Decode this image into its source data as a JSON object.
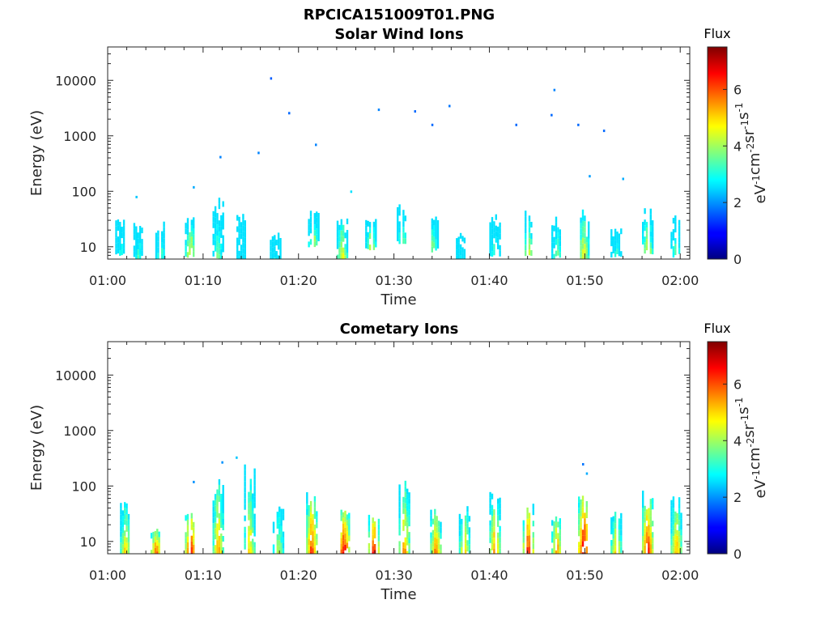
{
  "figure_title": "RPCICA151009T01.PNG",
  "chart_data": [
    {
      "type": "heatmap",
      "title": "Solar Wind Ions",
      "xlabel": "Time",
      "ylabel": "Energy (eV)",
      "x_ticks": [
        "01:00",
        "01:10",
        "01:20",
        "01:30",
        "01:40",
        "01:50",
        "02:00"
      ],
      "x_range_minutes": [
        0,
        61
      ],
      "y_scale": "log",
      "y_ticks": [
        "10",
        "100",
        "1000",
        "10000"
      ],
      "y_range": [
        6,
        40000
      ],
      "colorbar": {
        "title": "Flux",
        "label": "eV-1cm-2sr-1s-1",
        "ticks": [
          "0",
          "2",
          "4",
          "6"
        ],
        "range": [
          0,
          7.5
        ],
        "colormap": "jet"
      },
      "bursts": [
        {
          "t": 1.3,
          "e_lo": 8,
          "e_hi": 35,
          "flux": 3.2
        },
        {
          "t": 3.2,
          "e_lo": 7,
          "e_hi": 30,
          "flux": 3.4
        },
        {
          "t": 5.5,
          "e_lo": 6,
          "e_hi": 30,
          "flux": 3.8
        },
        {
          "t": 8.6,
          "e_lo": 8,
          "e_hi": 40,
          "flux": 4.8
        },
        {
          "t": 11.5,
          "e_lo": 7,
          "e_hi": 80,
          "flux": 3.9
        },
        {
          "t": 14.0,
          "e_lo": 6,
          "e_hi": 40,
          "flux": 3.0
        },
        {
          "t": 17.5,
          "e_lo": 6,
          "e_hi": 18,
          "flux": 3.0
        },
        {
          "t": 21.5,
          "e_lo": 12,
          "e_hi": 50,
          "flux": 4.3
        },
        {
          "t": 24.5,
          "e_lo": 7,
          "e_hi": 40,
          "flux": 4.8
        },
        {
          "t": 27.5,
          "e_lo": 10,
          "e_hi": 40,
          "flux": 4.5
        },
        {
          "t": 30.8,
          "e_lo": 14,
          "e_hi": 60,
          "flux": 3.8
        },
        {
          "t": 34.0,
          "e_lo": 10,
          "e_hi": 40,
          "flux": 4.0
        },
        {
          "t": 37.0,
          "e_lo": 6,
          "e_hi": 20,
          "flux": 3.2
        },
        {
          "t": 40.5,
          "e_lo": 8,
          "e_hi": 40,
          "flux": 3.6
        },
        {
          "t": 44.0,
          "e_lo": 8,
          "e_hi": 45,
          "flux": 4.6
        },
        {
          "t": 47.0,
          "e_lo": 7,
          "e_hi": 35,
          "flux": 4.0
        },
        {
          "t": 49.8,
          "e_lo": 6,
          "e_hi": 60,
          "flux": 4.9
        },
        {
          "t": 53.2,
          "e_lo": 8,
          "e_hi": 25,
          "flux": 3.3
        },
        {
          "t": 56.5,
          "e_lo": 9,
          "e_hi": 50,
          "flux": 4.6
        },
        {
          "t": 59.5,
          "e_lo": 8,
          "e_hi": 40,
          "flux": 3.9
        }
      ],
      "points": [
        {
          "t": 3.0,
          "e": 80,
          "flux": 2.4
        },
        {
          "t": 9.0,
          "e": 120,
          "flux": 2.2
        },
        {
          "t": 11.8,
          "e": 420,
          "flux": 1.9
        },
        {
          "t": 15.8,
          "e": 500,
          "flux": 1.9
        },
        {
          "t": 17.1,
          "e": 11000,
          "flux": 1.6
        },
        {
          "t": 19.0,
          "e": 2600,
          "flux": 1.7
        },
        {
          "t": 21.8,
          "e": 700,
          "flux": 1.9
        },
        {
          "t": 25.5,
          "e": 100,
          "flux": 2.6
        },
        {
          "t": 28.4,
          "e": 3000,
          "flux": 1.9
        },
        {
          "t": 32.2,
          "e": 2800,
          "flux": 1.7
        },
        {
          "t": 34.0,
          "e": 1600,
          "flux": 1.7
        },
        {
          "t": 35.8,
          "e": 3500,
          "flux": 1.8
        },
        {
          "t": 42.8,
          "e": 1600,
          "flux": 1.7
        },
        {
          "t": 46.5,
          "e": 2400,
          "flux": 1.7
        },
        {
          "t": 46.8,
          "e": 6800,
          "flux": 1.9
        },
        {
          "t": 49.3,
          "e": 1600,
          "flux": 1.7
        },
        {
          "t": 50.5,
          "e": 190,
          "flux": 2.1
        },
        {
          "t": 52.0,
          "e": 1250,
          "flux": 1.7
        },
        {
          "t": 54.0,
          "e": 170,
          "flux": 2.2
        }
      ]
    },
    {
      "type": "heatmap",
      "title": "Cometary Ions",
      "xlabel": "Time",
      "ylabel": "Energy (eV)",
      "x_ticks": [
        "01:00",
        "01:10",
        "01:20",
        "01:30",
        "01:40",
        "01:50",
        "02:00"
      ],
      "x_range_minutes": [
        0,
        61
      ],
      "y_scale": "log",
      "y_ticks": [
        "10",
        "100",
        "1000",
        "10000"
      ],
      "y_range": [
        6,
        40000
      ],
      "colorbar": {
        "title": "Flux",
        "label": "eV-1cm-2sr-1s-1",
        "ticks": [
          "0",
          "2",
          "4",
          "6"
        ],
        "range": [
          0,
          7.5
        ],
        "colormap": "jet"
      },
      "bursts": [
        {
          "t": 1.8,
          "e_lo": 6,
          "e_hi": 60,
          "flux": 5.2
        },
        {
          "t": 5.0,
          "e_lo": 6,
          "e_hi": 20,
          "flux": 6.2
        },
        {
          "t": 8.6,
          "e_lo": 6,
          "e_hi": 40,
          "flux": 6.8
        },
        {
          "t": 11.5,
          "e_lo": 6,
          "e_hi": 150,
          "flux": 5.5
        },
        {
          "t": 14.8,
          "e_lo": 6,
          "e_hi": 250,
          "flux": 5.0
        },
        {
          "t": 17.8,
          "e_lo": 6,
          "e_hi": 45,
          "flux": 4.6
        },
        {
          "t": 21.3,
          "e_lo": 6,
          "e_hi": 90,
          "flux": 6.4
        },
        {
          "t": 24.7,
          "e_lo": 6,
          "e_hi": 45,
          "flux": 7.0
        },
        {
          "t": 27.8,
          "e_lo": 6,
          "e_hi": 45,
          "flux": 6.6
        },
        {
          "t": 31.0,
          "e_lo": 6,
          "e_hi": 130,
          "flux": 5.6
        },
        {
          "t": 34.3,
          "e_lo": 6,
          "e_hi": 45,
          "flux": 5.9
        },
        {
          "t": 37.3,
          "e_lo": 6,
          "e_hi": 45,
          "flux": 5.4
        },
        {
          "t": 40.5,
          "e_lo": 6,
          "e_hi": 80,
          "flux": 5.9
        },
        {
          "t": 44.0,
          "e_lo": 6,
          "e_hi": 60,
          "flux": 6.6
        },
        {
          "t": 47.0,
          "e_lo": 6,
          "e_hi": 45,
          "flux": 5.8
        },
        {
          "t": 49.8,
          "e_lo": 6,
          "e_hi": 110,
          "flux": 7.0
        },
        {
          "t": 53.2,
          "e_lo": 6,
          "e_hi": 45,
          "flux": 5.3
        },
        {
          "t": 56.5,
          "e_lo": 6,
          "e_hi": 90,
          "flux": 6.6
        },
        {
          "t": 59.5,
          "e_lo": 6,
          "e_hi": 70,
          "flux": 5.6
        }
      ],
      "points": [
        {
          "t": 9.0,
          "e": 120,
          "flux": 2.0
        },
        {
          "t": 12.0,
          "e": 270,
          "flux": 2.0
        },
        {
          "t": 13.5,
          "e": 330,
          "flux": 2.4
        },
        {
          "t": 49.8,
          "e": 250,
          "flux": 1.8
        },
        {
          "t": 50.2,
          "e": 170,
          "flux": 2.2
        }
      ]
    }
  ]
}
